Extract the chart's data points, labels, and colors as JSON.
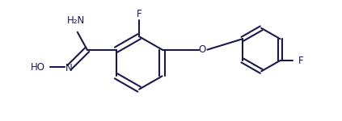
{
  "bg_color": "#ffffff",
  "line_color": "#1a1a4a",
  "line_width": 1.5,
  "font_size": 8.5,
  "font_color": "#1a1a4a",
  "fig_width": 4.23,
  "fig_height": 1.5,
  "dpi": 100,
  "xlim": [
    0,
    4.23
  ],
  "ylim": [
    0,
    1.5
  ]
}
